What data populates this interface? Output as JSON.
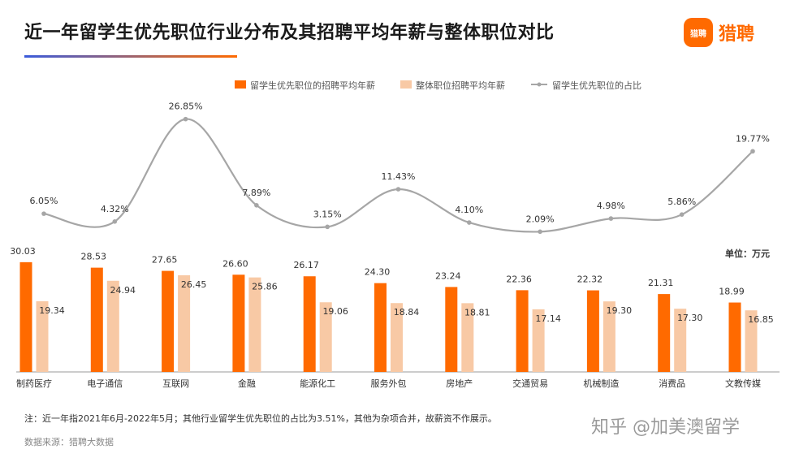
{
  "header": {
    "title": "近一年留学生优先职位行业分布及其招聘平均年薪与整体职位对比",
    "logo_badge": "猎聘",
    "logo_text": "猎聘"
  },
  "chart_data": {
    "type": "bar",
    "categories": [
      "制药医疗",
      "电子通信",
      "互联网",
      "金融",
      "能源化工",
      "服务外包",
      "房地产",
      "交通贸易",
      "机械制造",
      "消费品",
      "文教传媒"
    ],
    "series": [
      {
        "name": "留学生优先职位的招聘平均年薪",
        "kind": "bar",
        "color": "#ff6a00",
        "values": [
          30.03,
          28.53,
          27.65,
          26.6,
          26.17,
          24.3,
          23.24,
          22.36,
          22.32,
          21.31,
          18.99
        ]
      },
      {
        "name": "整体职位招聘平均年薪",
        "kind": "bar",
        "color": "#f8c9a5",
        "values": [
          19.34,
          24.94,
          26.45,
          25.86,
          19.06,
          18.84,
          18.81,
          17.14,
          19.3,
          17.3,
          16.85
        ]
      },
      {
        "name": "留学生优先职位的占比",
        "kind": "line",
        "color": "#a6a6a6",
        "unit": "%",
        "values": [
          6.05,
          4.32,
          26.85,
          7.89,
          3.15,
          11.43,
          4.1,
          2.09,
          4.98,
          5.86,
          19.77
        ]
      }
    ],
    "bar_labels": [
      [
        "30.03",
        "28.53",
        "27.65",
        "26.60",
        "26.17",
        "24.30",
        "23.24",
        "22.36",
        "22.32",
        "21.31",
        "18.99"
      ],
      [
        "19.34",
        "24.94",
        "26.45",
        "25.86",
        "19.06",
        "18.84",
        "18.81",
        "17.14",
        "19.30",
        "17.30",
        "16.85"
      ]
    ],
    "line_labels": [
      "6.05%",
      "4.32%",
      "26.85%",
      "7.89%",
      "3.15%",
      "11.43%",
      "4.10%",
      "2.09%",
      "4.98%",
      "5.86%",
      "19.77%"
    ],
    "legend_position": "top-center",
    "unit_label": "单位：万元",
    "grid": false
  },
  "footer": {
    "note": "注：近一年指2021年6月-2022年5月；其他行业留学生优先职位的占比为3.51%，其他为杂项合并，故薪资不作展示。",
    "source": "数据来源：猎聘大数据",
    "watermark": "知乎 @加美澳留学"
  }
}
